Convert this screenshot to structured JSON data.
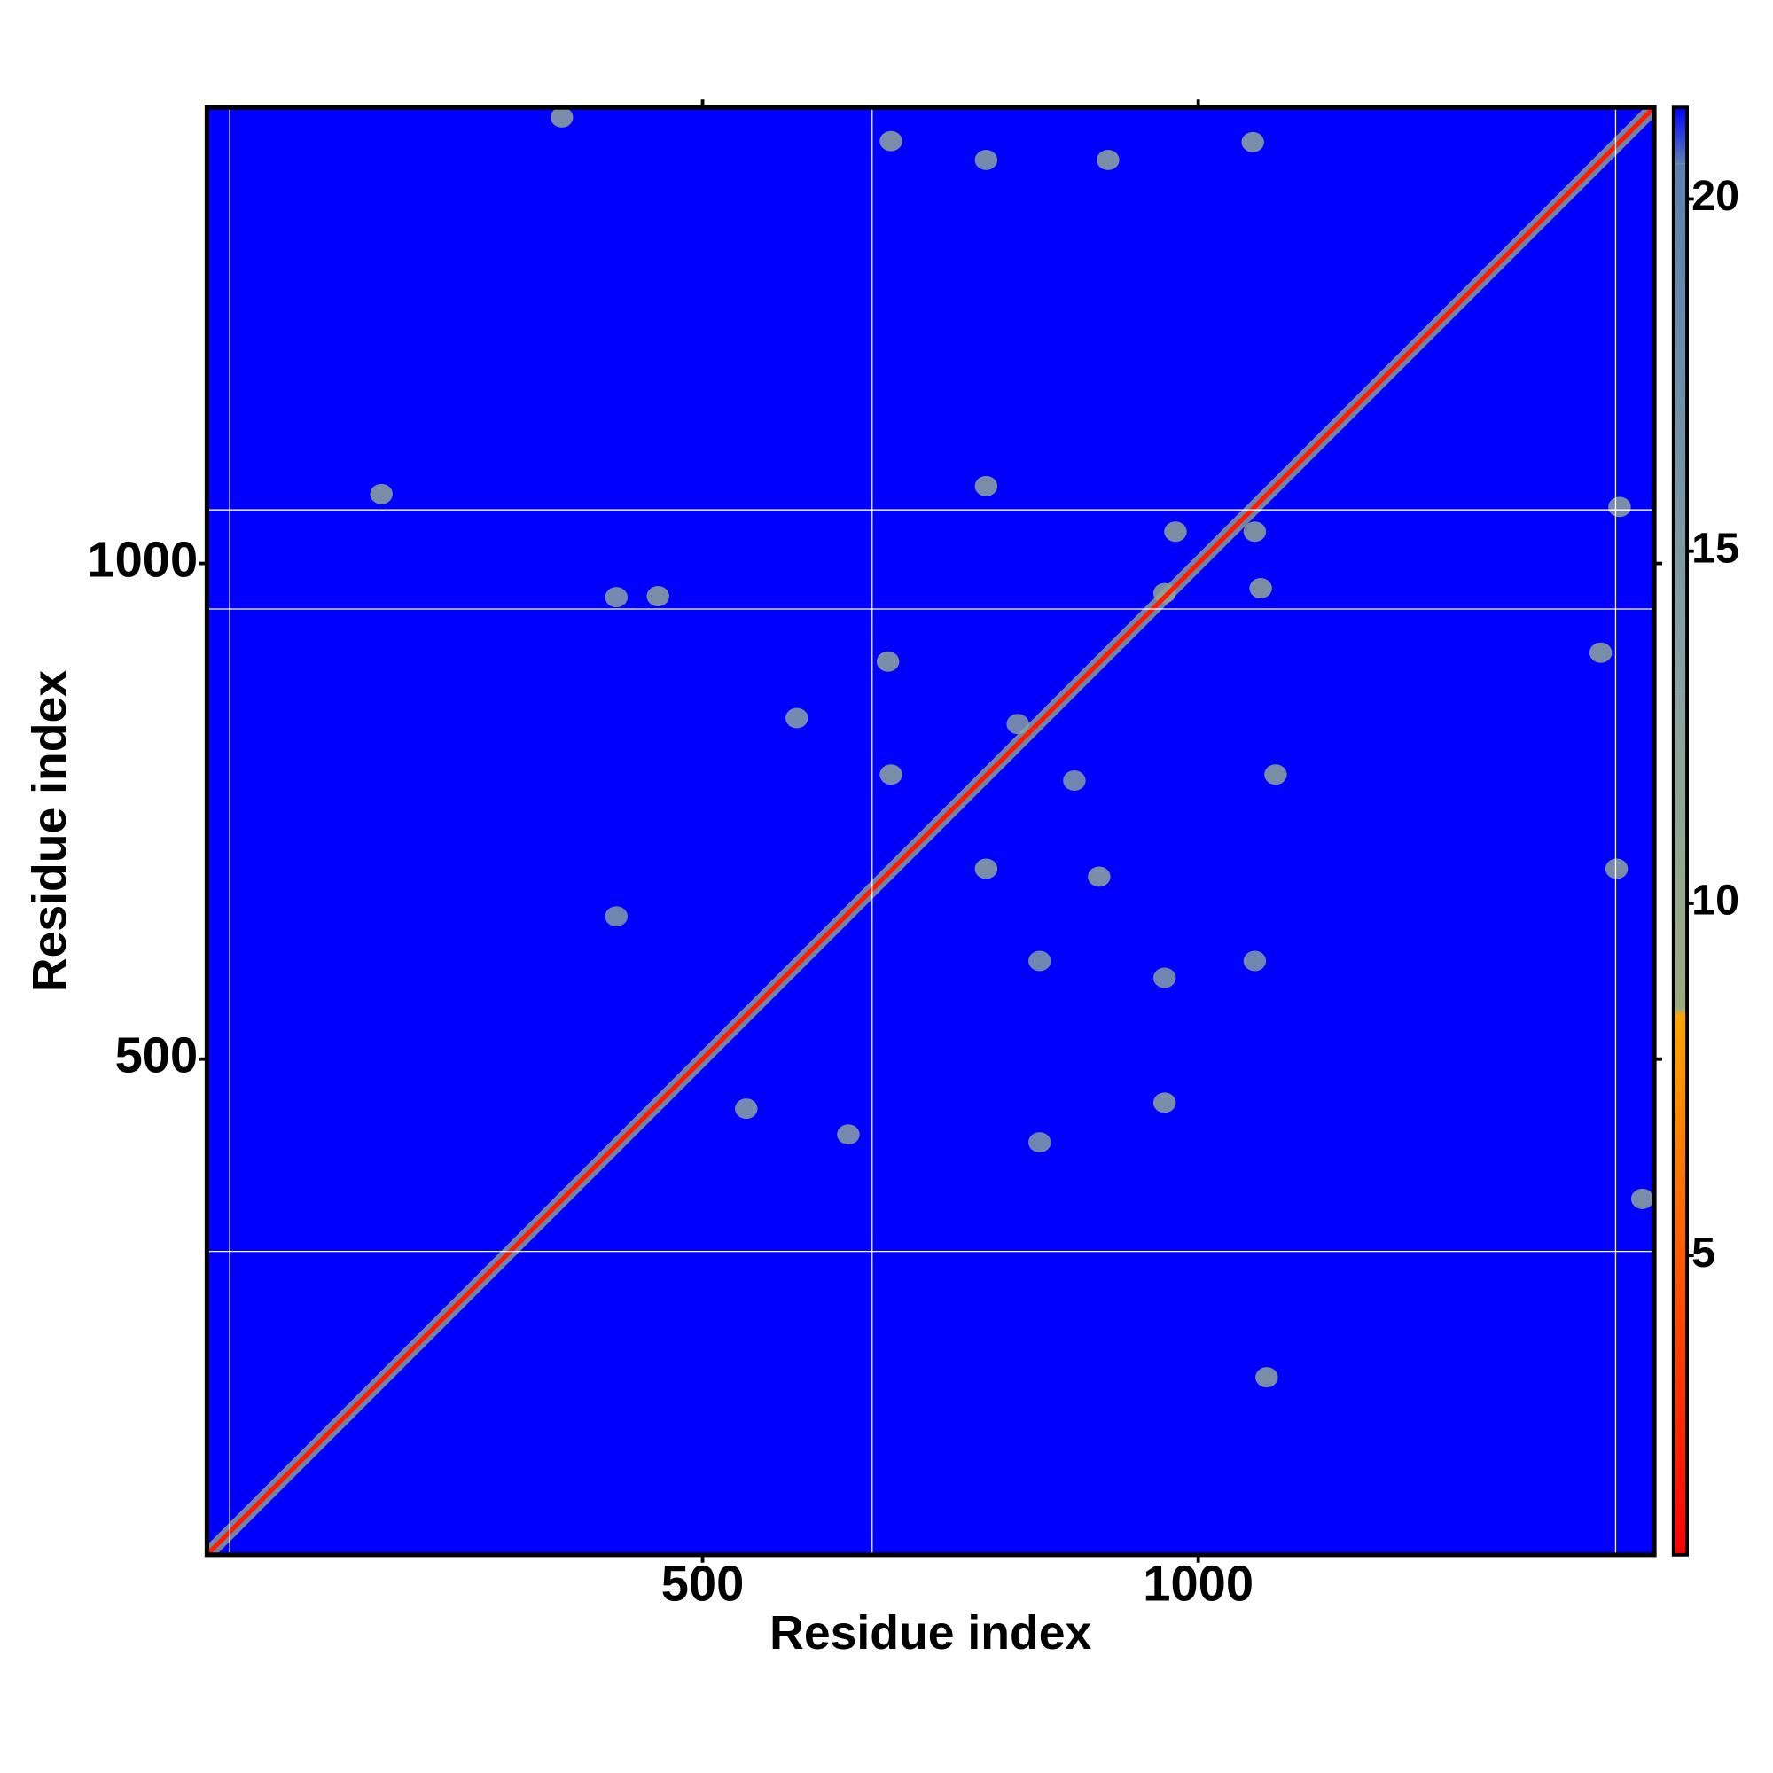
{
  "chart_data": {
    "type": "heatmap",
    "x_label": "Residue index",
    "y_label": "Residue index",
    "xlim": [
      0,
      1460
    ],
    "ylim": [
      0,
      1460
    ],
    "xticks": [
      500,
      1000
    ],
    "yticks": [
      500,
      1000
    ],
    "clim": [
      0.75,
      21.3
    ],
    "cticks": [
      5,
      10,
      15,
      20
    ],
    "colorscale": [
      {
        "value": 0.75,
        "color": "#ff0000"
      },
      {
        "value": 8.4,
        "color": "#ffa500"
      },
      {
        "value": 8.5,
        "color": "#9aaa80"
      },
      {
        "value": 13,
        "color": "#8aa2a0"
      },
      {
        "value": 20.5,
        "color": "#5a80b0"
      },
      {
        "value": 21.3,
        "color": "#0000ff"
      }
    ],
    "domain_lines": {
      "x": [
        23,
        671,
        1421
      ],
      "y": [
        306,
        954,
        1054
      ]
    },
    "diagonal": {
      "x": [
        0,
        1460
      ],
      "y": [
        0,
        1460
      ],
      "value": 2,
      "band_value": 11
    },
    "contacts": {
      "x": [
        358,
        690,
        909,
        1055,
        786,
        176,
        786,
        455,
        1425,
        1406,
        687,
        690,
        1078,
        786,
        900,
        1422,
        966,
        647,
        1069,
        1448,
        977,
        1057,
        966,
        1063,
        595,
        413,
        544,
        840,
        1057,
        818,
        875,
        966,
        840,
        413
      ],
      "y": [
        1450,
        1426,
        1407,
        1425,
        1407,
        1070,
        1078,
        967,
        1057,
        910,
        901,
        787,
        787,
        692,
        684,
        692,
        456,
        424,
        179,
        359,
        1032,
        1032,
        970,
        975,
        844,
        966,
        450,
        599,
        599,
        838,
        781,
        582,
        416,
        644
      ],
      "values": [
        12,
        12,
        12,
        12,
        13,
        12,
        12,
        12,
        12,
        12,
        12,
        12,
        12,
        12,
        12,
        12,
        12,
        13,
        12,
        12,
        11,
        11,
        11,
        11,
        13,
        13,
        13,
        14,
        14,
        14,
        14,
        14,
        14,
        14
      ]
    }
  }
}
